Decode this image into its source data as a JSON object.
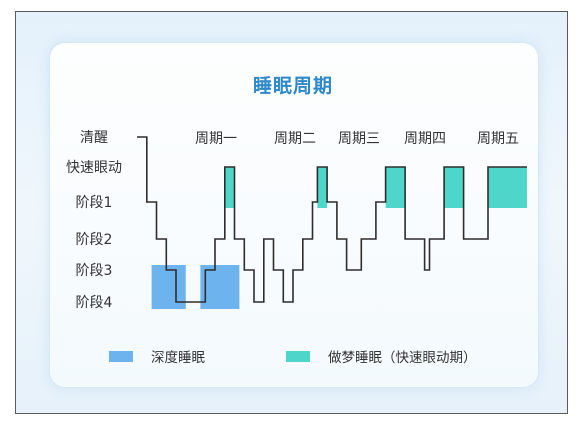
{
  "chart_data": {
    "type": "line",
    "title": "睡眠周期",
    "y_levels": [
      "清醒",
      "快速眼动",
      "阶段1",
      "阶段2",
      "阶段3",
      "阶段4"
    ],
    "cycles": [
      "周期一",
      "周期二",
      "周期三",
      "周期四",
      "周期五"
    ],
    "series": [
      {
        "values": [
          [
            0,
            "清醒"
          ],
          [
            1,
            "清醒"
          ],
          [
            1,
            "阶段1"
          ],
          [
            2,
            "阶段1"
          ],
          [
            2,
            "阶段2"
          ],
          [
            3,
            "阶段2"
          ],
          [
            3,
            "阶段3"
          ],
          [
            4,
            "阶段3"
          ],
          [
            4,
            "阶段4"
          ],
          [
            7,
            "阶段4"
          ],
          [
            7,
            "阶段3"
          ],
          [
            8,
            "阶段3"
          ],
          [
            8,
            "阶段2"
          ],
          [
            9,
            "阶段2"
          ],
          [
            9,
            "快速眼动"
          ],
          [
            10,
            "快速眼动"
          ],
          [
            10,
            "阶段2"
          ],
          [
            11,
            "阶段2"
          ],
          [
            11,
            "阶段3"
          ],
          [
            12,
            "阶段3"
          ],
          [
            12,
            "阶段4"
          ],
          [
            13,
            "阶段4"
          ],
          [
            13,
            "阶段2"
          ],
          [
            14,
            "阶段2"
          ],
          [
            14,
            "阶段3"
          ],
          [
            15,
            "阶段3"
          ],
          [
            15,
            "阶段4"
          ],
          [
            16,
            "阶段4"
          ],
          [
            16,
            "阶段3"
          ],
          [
            17,
            "阶段3"
          ],
          [
            17,
            "阶段2"
          ],
          [
            18,
            "阶段2"
          ],
          [
            18,
            "阶段1"
          ],
          [
            18.5,
            "阶段1"
          ],
          [
            18.5,
            "快速眼动"
          ],
          [
            19.5,
            "快速眼动"
          ],
          [
            19.5,
            "阶段1"
          ],
          [
            20.5,
            "阶段1"
          ],
          [
            20.5,
            "阶段2"
          ],
          [
            21.5,
            "阶段2"
          ],
          [
            21.5,
            "阶段3"
          ],
          [
            23,
            "阶段3"
          ],
          [
            23,
            "阶段2"
          ],
          [
            24.5,
            "阶段2"
          ],
          [
            24.5,
            "阶段1"
          ],
          [
            25.5,
            "阶段1"
          ],
          [
            25.5,
            "快速眼动"
          ],
          [
            27.5,
            "快速眼动"
          ],
          [
            27.5,
            "阶段2"
          ],
          [
            29.5,
            "阶段2"
          ],
          [
            29.5,
            "阶段3"
          ],
          [
            30,
            "阶段3"
          ],
          [
            30,
            "阶段2"
          ],
          [
            31.5,
            "阶段2"
          ],
          [
            31.5,
            "快速眼动"
          ],
          [
            33.5,
            "快速眼动"
          ],
          [
            33.5,
            "阶段2"
          ],
          [
            36,
            "阶段2"
          ],
          [
            36,
            "快速眼动"
          ],
          [
            40,
            "快速眼动"
          ]
        ]
      }
    ],
    "deep_sleep_bands": [
      [
        1.5,
        5.0
      ],
      [
        6.5,
        10.5
      ]
    ],
    "rem_bands": [
      [
        9,
        10
      ],
      [
        18.5,
        19.5
      ],
      [
        25.5,
        27.5
      ],
      [
        31.5,
        33.5
      ],
      [
        36,
        40
      ]
    ],
    "xlim": [
      0,
      40
    ],
    "legend": [
      {
        "label": "深度睡眠",
        "color": "#6db3ee"
      },
      {
        "label": "做梦睡眠（快速眼动期）",
        "color": "#4fd6cb"
      }
    ]
  }
}
